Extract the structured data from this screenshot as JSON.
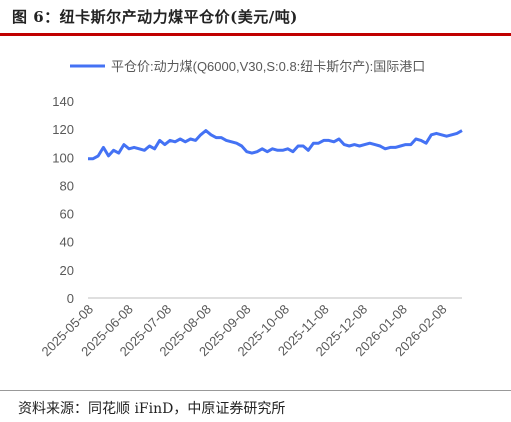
{
  "figure": {
    "title": "图 6：纽卡斯尔产动力煤平仓价(美元/吨)",
    "source": "资料来源：同花顺 iFinD，中原证券研究所"
  },
  "chart_data": {
    "type": "line",
    "title": "",
    "xlabel": "",
    "ylabel": "",
    "ylim": [
      0,
      140
    ],
    "yticks": [
      0,
      20,
      40,
      60,
      80,
      100,
      120,
      140
    ],
    "xtick_labels": [
      "2025-05-08",
      "2025-06-08",
      "2025-07-08",
      "2025-08-08",
      "2025-09-08",
      "2025-10-08",
      "2025-11-08",
      "2025-12-08",
      "2026-01-08",
      "2026-02-08"
    ],
    "grid": false,
    "legend_position": "top",
    "series": [
      {
        "name": "平仓价:动力煤(Q6000,V30,S:0.8:纽卡斯尔产):国际港口",
        "color": "#4472f4",
        "x": [
          "2025-05-08",
          "2025-05-12",
          "2025-05-16",
          "2025-05-20",
          "2025-05-24",
          "2025-05-28",
          "2025-06-01",
          "2025-06-05",
          "2025-06-09",
          "2025-06-13",
          "2025-06-17",
          "2025-06-21",
          "2025-06-25",
          "2025-06-29",
          "2025-07-03",
          "2025-07-07",
          "2025-07-11",
          "2025-07-15",
          "2025-07-19",
          "2025-07-23",
          "2025-07-27",
          "2025-07-31",
          "2025-08-04",
          "2025-08-08",
          "2025-08-12",
          "2025-08-16",
          "2025-08-20",
          "2025-08-24",
          "2025-08-28",
          "2025-09-01",
          "2025-09-05",
          "2025-09-09",
          "2025-09-13",
          "2025-09-17",
          "2025-09-21",
          "2025-09-25",
          "2025-09-29",
          "2025-10-03",
          "2025-10-07",
          "2025-10-11",
          "2025-10-15",
          "2025-10-19",
          "2025-10-23",
          "2025-10-27",
          "2025-10-31",
          "2025-11-04",
          "2025-11-08",
          "2025-11-12",
          "2025-11-16",
          "2025-11-20",
          "2025-11-24",
          "2025-11-28",
          "2025-12-02",
          "2025-12-06",
          "2025-12-10",
          "2025-12-14",
          "2025-12-18",
          "2025-12-22",
          "2025-12-26",
          "2025-12-30",
          "2026-01-03",
          "2026-01-07",
          "2026-01-11",
          "2026-01-15",
          "2026-01-19",
          "2026-01-23",
          "2026-01-27",
          "2026-01-31",
          "2026-02-04",
          "2026-02-08",
          "2026-02-12",
          "2026-02-16",
          "2026-02-20",
          "2026-02-24"
        ],
        "y": [
          99,
          99,
          101,
          107,
          101,
          105,
          103,
          109,
          106,
          107,
          106,
          105,
          108,
          106,
          112,
          109,
          112,
          111,
          113,
          111,
          113,
          112,
          116,
          119,
          116,
          114,
          114,
          112,
          111,
          110,
          108,
          104,
          103,
          104,
          106,
          104,
          106,
          105,
          105,
          106,
          104,
          108,
          108,
          105,
          110,
          110,
          112,
          112,
          111,
          113,
          109,
          108,
          109,
          108,
          109,
          110,
          109,
          108,
          106,
          107,
          107,
          108,
          109,
          109,
          113,
          112,
          110,
          116,
          117,
          116,
          115,
          116,
          117,
          119
        ]
      }
    ]
  }
}
